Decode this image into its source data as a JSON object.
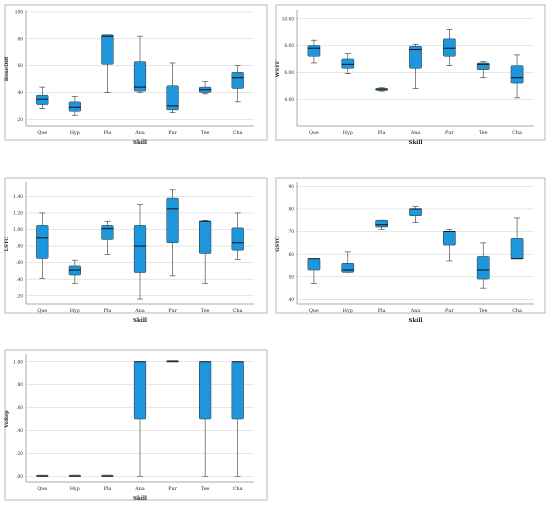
{
  "colors": {
    "box_fill": "#1e96dc",
    "grid": "#cfcfcf",
    "frame": "#9a9a9a"
  },
  "chart_data": [
    {
      "type": "box",
      "xlabel": "Skill",
      "ylabel": "BeneDiff",
      "ylim": [
        15,
        100
      ],
      "yticks": [
        20,
        40,
        60,
        80,
        100
      ],
      "ytick_labels": [
        "20",
        "40",
        "60",
        "80",
        "100"
      ],
      "grid": true,
      "categories": [
        "Que",
        "Hyp",
        "Pla",
        "Ana",
        "Pur",
        "Tee",
        "Cha"
      ],
      "boxes": [
        {
          "min": 28,
          "q1": 31,
          "median": 35,
          "q3": 38,
          "max": 44
        },
        {
          "min": 23,
          "q1": 26,
          "median": 29,
          "q3": 33,
          "max": 37
        },
        {
          "min": 40,
          "q1": 61,
          "median": 82,
          "q3": 83,
          "max": 83
        },
        {
          "min": 40,
          "q1": 41,
          "median": 44,
          "q3": 63,
          "max": 82
        },
        {
          "min": 25,
          "q1": 27,
          "median": 30,
          "q3": 45,
          "max": 62
        },
        {
          "min": 39,
          "q1": 40,
          "median": 42,
          "q3": 44,
          "max": 48
        },
        {
          "min": 33,
          "q1": 43,
          "median": 51,
          "q3": 55,
          "max": 60
        }
      ]
    },
    {
      "type": "box",
      "xlabel": "Skill",
      "ylabel": "WSTF",
      "ylim": [
        2,
        10.5
      ],
      "yticks": [
        4,
        6,
        8,
        10
      ],
      "ytick_labels": [
        "4.00",
        "6.00",
        "8.00",
        "10.00"
      ],
      "grid": true,
      "categories": [
        "Que",
        "Hyp",
        "Pla",
        "Ana",
        "Pur",
        "Tee",
        "Cha"
      ],
      "boxes": [
        {
          "min": 6.7,
          "q1": 7.2,
          "median": 7.8,
          "q3": 8.0,
          "max": 8.4
        },
        {
          "min": 5.9,
          "q1": 6.3,
          "median": 6.6,
          "q3": 7.0,
          "max": 7.4
        },
        {
          "min": 4.6,
          "q1": 4.65,
          "median": 4.75,
          "q3": 4.8,
          "max": 4.85
        },
        {
          "min": 4.8,
          "q1": 6.3,
          "median": 7.7,
          "q3": 7.95,
          "max": 8.1
        },
        {
          "min": 6.5,
          "q1": 7.2,
          "median": 7.8,
          "q3": 8.5,
          "max": 9.2
        },
        {
          "min": 5.6,
          "q1": 6.2,
          "median": 6.6,
          "q3": 6.7,
          "max": 6.8
        },
        {
          "min": 4.1,
          "q1": 5.2,
          "median": 5.6,
          "q3": 6.5,
          "max": 7.3
        }
      ]
    },
    {
      "type": "box",
      "xlabel": "Skill",
      "ylabel": "LSTC",
      "ylim": [
        1,
        15.5
      ],
      "yticks": [
        2,
        4,
        6,
        8,
        10,
        12,
        14
      ],
      "ytick_labels": [
        ".20",
        ".40",
        ".60",
        ".80",
        "1.00",
        "1.20",
        "1.40"
      ],
      "grid": true,
      "categories": [
        "Que",
        "Hyp",
        "Pla",
        "Ana",
        "Pur",
        "Tee",
        "Cha"
      ],
      "boxes": [
        {
          "min": 4.1,
          "q1": 6.5,
          "median": 9,
          "q3": 10.5,
          "max": 12
        },
        {
          "min": 3.5,
          "q1": 4.5,
          "median": 5.1,
          "q3": 5.6,
          "max": 6.3
        },
        {
          "min": 7.0,
          "q1": 8.8,
          "median": 10.1,
          "q3": 10.5,
          "max": 11.0
        },
        {
          "min": 1.6,
          "q1": 4.8,
          "median": 8,
          "q3": 10.5,
          "max": 13
        },
        {
          "min": 4.4,
          "q1": 8.4,
          "median": 12.5,
          "q3": 13.8,
          "max": 14.8
        },
        {
          "min": 3.5,
          "q1": 7.1,
          "median": 11.0,
          "q3": 11.0,
          "max": 11.1
        },
        {
          "min": 6.4,
          "q1": 7.5,
          "median": 8.4,
          "q3": 10.2,
          "max": 12
        }
      ]
    },
    {
      "type": "box",
      "xlabel": "Skill",
      "ylabel": "GSTC",
      "ylim": [
        38,
        91
      ],
      "yticks": [
        40,
        50,
        60,
        70,
        80,
        90
      ],
      "ytick_labels": [
        "40",
        "50",
        "60",
        "70",
        "80",
        "90"
      ],
      "grid": true,
      "categories": [
        "Que",
        "Hyp",
        "Pla",
        "Ana",
        "Pur",
        "Tee",
        "Cha"
      ],
      "boxes": [
        {
          "min": 47,
          "q1": 53,
          "median": 58,
          "q3": 58,
          "max": 58
        },
        {
          "min": 52,
          "q1": 52,
          "median": 53,
          "q3": 56,
          "max": 61
        },
        {
          "min": 71,
          "q1": 72,
          "median": 73,
          "q3": 75,
          "max": 75
        },
        {
          "min": 74,
          "q1": 77,
          "median": 80,
          "q3": 80,
          "max": 81
        },
        {
          "min": 57,
          "q1": 64,
          "median": 70,
          "q3": 70,
          "max": 71
        },
        {
          "min": 45,
          "q1": 49,
          "median": 53,
          "q3": 59,
          "max": 65
        },
        {
          "min": 58,
          "q1": 58,
          "median": 58,
          "q3": 67,
          "max": 76
        }
      ]
    },
    {
      "type": "box",
      "xlabel": "Skill",
      "ylabel": "VoRep",
      "ylim": [
        -0.05,
        1.05
      ],
      "yticks": [
        0,
        0.2,
        0.4,
        0.6,
        0.8,
        1.0
      ],
      "ytick_labels": [
        ".00",
        ".20",
        ".40",
        ".60",
        ".80",
        "1.00"
      ],
      "grid": true,
      "categories": [
        "Que",
        "Hyp",
        "Pla",
        "Ana",
        "Pur",
        "Tee",
        "Cha"
      ],
      "boxes": [
        {
          "min": 0,
          "q1": 0,
          "median": 0,
          "q3": 0,
          "max": 0
        },
        {
          "min": 0,
          "q1": 0,
          "median": 0,
          "q3": 0,
          "max": 0
        },
        {
          "min": 0,
          "q1": 0,
          "median": 0,
          "q3": 0,
          "max": 0
        },
        {
          "min": 0,
          "q1": 0.5,
          "median": 1,
          "q3": 1,
          "max": 1
        },
        {
          "min": 1,
          "q1": 1,
          "median": 1,
          "q3": 1,
          "max": 1
        },
        {
          "min": 0,
          "q1": 0.5,
          "median": 1,
          "q3": 1,
          "max": 1
        },
        {
          "min": 0,
          "q1": 0.5,
          "median": 1,
          "q3": 1,
          "max": 1
        }
      ]
    }
  ]
}
